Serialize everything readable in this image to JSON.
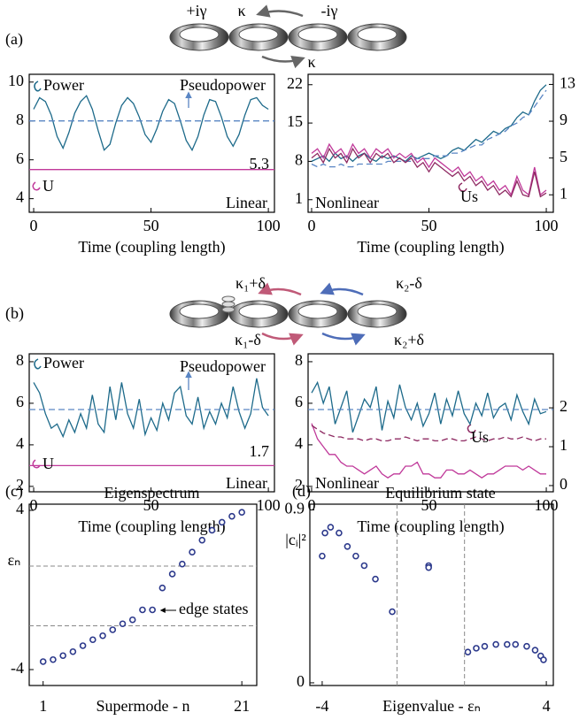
{
  "panel_labels": [
    "(a)",
    "(b)",
    "(c)",
    "(d)"
  ],
  "diagram_a": {
    "labels": [
      "+iγ",
      "κ",
      "-iγ",
      "κ"
    ]
  },
  "diagram_b": {
    "labels": [
      "κ₁+δ",
      "κ₂-δ",
      "κ₁-δ",
      "κ₂+δ"
    ]
  },
  "chart_data": [
    {
      "type": "line",
      "xlabel": "Time (coupling length)",
      "x": [
        0,
        2.5,
        5,
        7.5,
        10,
        12.5,
        15,
        17.5,
        20,
        22.5,
        25,
        27.5,
        30,
        32.5,
        35,
        37.5,
        40,
        42.5,
        45,
        47.5,
        50,
        52.5,
        55,
        57.5,
        60,
        62.5,
        65,
        67.5,
        70,
        72.5,
        75,
        77.5,
        80,
        82.5,
        85,
        87.5,
        90,
        92.5,
        95,
        97.5,
        100
      ],
      "xlim": [
        -1.9,
        102.6
      ],
      "xticks": [
        0,
        50,
        100
      ],
      "ylim": [
        3.3,
        10.4
      ],
      "yticks": [
        4,
        6,
        8,
        10
      ],
      "ytick_color": "#2a7ab0",
      "series": [
        {
          "name": "Power",
          "color": "#1d6a8a",
          "values": [
            8.6,
            9.2,
            9.0,
            8.3,
            7.2,
            6.6,
            7.4,
            8.4,
            9.0,
            9.3,
            8.6,
            7.5,
            6.5,
            6.8,
            7.9,
            8.8,
            9.2,
            8.9,
            8.2,
            7.3,
            6.9,
            7.6,
            8.5,
            9.1,
            8.9,
            8.0,
            7.0,
            6.5,
            7.2,
            8.3,
            9.1,
            9.0,
            8.2,
            7.2,
            6.7,
            7.3,
            8.3,
            9.1,
            9.2,
            8.8,
            8.6
          ]
        },
        {
          "name": "Pseudopower",
          "color": "#5a86c4",
          "dash": true,
          "x": [
            -1.9,
            102.6
          ],
          "values": [
            8,
            8
          ]
        },
        {
          "name": "U",
          "color": "#c0399a",
          "x": [
            -1.9,
            102.6
          ],
          "values": [
            5.5,
            5.5
          ]
        }
      ],
      "annotations": [
        "5.3",
        "Linear"
      ]
    },
    {
      "type": "line",
      "xlabel": "Time (coupling length)",
      "x": [
        0,
        2.5,
        5,
        7.5,
        10,
        12.5,
        15,
        17.5,
        20,
        22.5,
        25,
        27.5,
        30,
        32.5,
        35,
        37.5,
        40,
        42.5,
        45,
        47.5,
        50,
        52.5,
        55,
        57.5,
        60,
        62.5,
        65,
        67.5,
        70,
        72.5,
        75,
        77.5,
        80,
        82.5,
        85,
        87.5,
        90,
        92.5,
        95,
        97.5,
        100
      ],
      "xlim": [
        -1.5,
        103
      ],
      "xticks": [
        0,
        50,
        100
      ],
      "ylim": [
        -1.3,
        23.9
      ],
      "yticks": [
        1,
        8,
        15,
        22
      ],
      "ytick_color": "#2a7ab0",
      "y2lim": [
        -0.9,
        14.1
      ],
      "y2ticks": [
        1,
        5,
        9,
        13
      ],
      "y2tick_color": "#c0399a",
      "series": [
        {
          "color": "#1d6a8a",
          "values": [
            8,
            8.5,
            9,
            8,
            9.5,
            8.5,
            9,
            8,
            9,
            9.5,
            8.5,
            8,
            9,
            8.5,
            9,
            8.5,
            8,
            9,
            8.5,
            9,
            9.5,
            9,
            8.5,
            9,
            10,
            10.5,
            10,
            11,
            12,
            11.5,
            12.5,
            13.5,
            13,
            14,
            14.5,
            16,
            17,
            16.5,
            19,
            21,
            22
          ]
        },
        {
          "color": "#5a86c4",
          "dash": true,
          "values": [
            7.5,
            7,
            7.5,
            7,
            7,
            7.5,
            7,
            7,
            7.5,
            7.5,
            7.5,
            7.5,
            7.5,
            8,
            8,
            8,
            8,
            8,
            8.5,
            8.5,
            8.5,
            9,
            9,
            9,
            9.5,
            9.5,
            10,
            10.5,
            11,
            11,
            12,
            12.5,
            13,
            13.5,
            14.5,
            15,
            16,
            16.5,
            18,
            19.5,
            21
          ]
        },
        {
          "color": "#c0399a",
          "axis": "y2",
          "values": [
            5.5,
            6,
            5,
            6.5,
            5.5,
            6,
            5,
            6.5,
            5.5,
            6,
            5,
            6,
            5.5,
            6,
            5,
            5.5,
            5,
            5.5,
            4.5,
            5,
            4,
            5,
            4.5,
            4,
            3.5,
            4,
            3,
            3.5,
            2.5,
            3,
            2,
            2.5,
            1.5,
            2,
            1,
            3,
            1.5,
            1,
            4,
            1,
            1.5
          ]
        },
        {
          "name": "Us",
          "color": "#8e2a62",
          "axis": "y2",
          "values": [
            5,
            5.5,
            4.5,
            6,
            5,
            5.5,
            4.5,
            6,
            5,
            5.5,
            4.5,
            5.5,
            5,
            5.5,
            4.5,
            5,
            4.5,
            5,
            4,
            4.5,
            3.5,
            4.5,
            4,
            3.5,
            3,
            3.5,
            2.5,
            3,
            2,
            2.5,
            1.5,
            2,
            1,
            1.5,
            0.8,
            2.5,
            1,
            0.8,
            3.5,
            0.8,
            1.2
          ]
        }
      ],
      "annotations": [
        "Nonlinear"
      ]
    },
    {
      "type": "line",
      "xlabel": "Time (coupling length)",
      "x": [
        0,
        2.5,
        5,
        7.5,
        10,
        12.5,
        15,
        17.5,
        20,
        22.5,
        25,
        27.5,
        30,
        32.5,
        35,
        37.5,
        40,
        42.5,
        45,
        47.5,
        50,
        52.5,
        55,
        57.5,
        60,
        62.5,
        65,
        67.5,
        70,
        72.5,
        75,
        77.5,
        80,
        82.5,
        85,
        87.5,
        90,
        92.5,
        95,
        97.5,
        100
      ],
      "xlim": [
        -1.9,
        102.6
      ],
      "xticks": [
        0,
        50,
        100
      ],
      "ylim": [
        1.74,
        8.38
      ],
      "yticks": [
        2,
        4,
        6,
        8
      ],
      "ytick_color": "#2a7ab0",
      "series": [
        {
          "name": "Power",
          "color": "#1d6a8a",
          "values": [
            7.0,
            6.5,
            5.5,
            4.8,
            5.0,
            4.4,
            5.2,
            4.6,
            5.5,
            4.8,
            6.4,
            5.0,
            4.6,
            6.8,
            5.2,
            7.0,
            5.5,
            4.8,
            6.2,
            4.5,
            5.3,
            4.7,
            6.0,
            5.2,
            6.5,
            6.8,
            5.4,
            5.0,
            6.3,
            4.8,
            5.6,
            5.0,
            6.0,
            5.3,
            6.8,
            5.6,
            4.8,
            5.5,
            7.2,
            5.8,
            5.4
          ]
        },
        {
          "name": "Pseudopower",
          "color": "#5a86c4",
          "dash": true,
          "x": [
            -1.9,
            102.6
          ],
          "values": [
            5.7,
            5.7
          ]
        },
        {
          "name": "U",
          "color": "#c0399a",
          "x": [
            -1.9,
            102.6
          ],
          "values": [
            3.0,
            3.0
          ]
        }
      ],
      "annotations": [
        "1.7",
        "Linear"
      ]
    },
    {
      "type": "line",
      "xlabel": "Time (coupling length)",
      "x": [
        0,
        2.5,
        5,
        7.5,
        10,
        12.5,
        15,
        17.5,
        20,
        22.5,
        25,
        27.5,
        30,
        32.5,
        35,
        37.5,
        40,
        42.5,
        45,
        47.5,
        50,
        52.5,
        55,
        57.5,
        60,
        62.5,
        65,
        67.5,
        70,
        72.5,
        75,
        77.5,
        80,
        82.5,
        85,
        87.5,
        90,
        92.5,
        95,
        97.5,
        100
      ],
      "xlim": [
        -1.5,
        103
      ],
      "xticks": [
        0,
        50,
        100
      ],
      "ylim": [
        1.74,
        8.38
      ],
      "yticks": [
        2,
        4,
        6,
        8
      ],
      "ytick_color": "#2a7ab0",
      "y2lim": [
        -0.16,
        3.39
      ],
      "y2ticks": [
        0,
        1,
        2
      ],
      "y2tick_color": "#c0399a",
      "series": [
        {
          "color": "#1d6a8a",
          "values": [
            6.5,
            7.0,
            6.0,
            6.8,
            5.0,
            5.8,
            6.6,
            4.6,
            5.4,
            6.2,
            5.8,
            6.8,
            4.7,
            6.1,
            5.3,
            6.9,
            5.8,
            5.2,
            6.0,
            4.9,
            5.5,
            6.5,
            5.0,
            6.2,
            5.4,
            6.6,
            5.5,
            5.0,
            6.0,
            5.4,
            6.5,
            5.3,
            5.8,
            6.0,
            5.2,
            6.4,
            5.6,
            5.0,
            6.2,
            5.5,
            5.6
          ]
        },
        {
          "color": "#5a86c4",
          "dash": true,
          "x": [
            -1.5,
            103
          ],
          "values": [
            5.7,
            5.7
          ]
        },
        {
          "color": "#c0399a",
          "axis": "y2",
          "values": [
            1.6,
            1.2,
            1.0,
            0.8,
            0.8,
            0.6,
            0.5,
            0.5,
            0.4,
            0.3,
            0.4,
            0.5,
            0.3,
            0.2,
            0.3,
            0.3,
            0.5,
            0.5,
            0.6,
            0.3,
            0.3,
            0.2,
            0.2,
            0.4,
            0.4,
            0.3,
            0.3,
            0.4,
            0.3,
            0.2,
            0.3,
            0.3,
            0.4,
            0.5,
            0.5,
            0.5,
            0.4,
            0.5,
            0.4,
            0.3,
            0.3
          ]
        },
        {
          "name": "Us",
          "color": "#8e2a62",
          "axis": "y2",
          "dash": true,
          "values": [
            1.55,
            1.45,
            1.35,
            1.3,
            1.25,
            1.25,
            1.2,
            1.2,
            1.2,
            1.15,
            1.2,
            1.2,
            1.15,
            1.15,
            1.2,
            1.2,
            1.25,
            1.2,
            1.15,
            1.2,
            1.2,
            1.15,
            1.15,
            1.2,
            1.2,
            1.15,
            1.15,
            1.2,
            1.25,
            1.2,
            1.15,
            1.2,
            1.2,
            1.25,
            1.2,
            1.2,
            1.25,
            1.2,
            1.15,
            1.2,
            1.2
          ]
        }
      ],
      "annotations": [
        "Nonlinear"
      ]
    },
    {
      "type": "scatter",
      "title": "Eigenspectrum",
      "xlabel": "Supermode - n",
      "ylabel": "εₙ",
      "x": [
        1,
        2,
        3,
        4,
        5,
        6,
        7,
        8,
        9,
        10,
        11,
        12,
        13,
        14,
        15,
        16,
        17,
        18,
        19,
        20,
        21
      ],
      "xlim": [
        -0.4,
        22.5
      ],
      "xticks": [
        1,
        21
      ],
      "ylim": [
        -4.8,
        4.31
      ],
      "yticks": [
        -4,
        4
      ],
      "color": "#2d3a8c",
      "values": [
        -3.6,
        -3.5,
        -3.3,
        -3.1,
        -2.8,
        -2.5,
        -2.3,
        -2.0,
        -1.7,
        -1.5,
        -1.0,
        -1.0,
        0.1,
        0.8,
        1.3,
        1.9,
        2.5,
        3.0,
        3.4,
        3.7,
        3.9
      ],
      "hlines": [
        1.2,
        -1.8
      ],
      "annotations": [
        "edge states"
      ]
    },
    {
      "type": "scatter",
      "title": "Equilibrium state",
      "xlabel": "Eigenvalue - εₙ",
      "ylabel": "|cᵢ|²",
      "x": [
        -4,
        -3.9,
        -3.7,
        -3.4,
        -3.1,
        -2.8,
        -2.5,
        -2.1,
        -1.5,
        -0.2,
        -0.2,
        1.2,
        1.5,
        1.8,
        2.2,
        2.6,
        2.9,
        3.3,
        3.6,
        3.8,
        3.9
      ],
      "xlim": [
        -4.44,
        4.25
      ],
      "xticks": [
        -4,
        4
      ],
      "ylim": [
        -0.014,
        0.93
      ],
      "yticks": [
        0,
        0.9
      ],
      "color": "#2d3a8c",
      "values": [
        0.66,
        0.78,
        0.81,
        0.78,
        0.71,
        0.66,
        0.61,
        0.54,
        0.37,
        0.61,
        0.6,
        0.16,
        0.18,
        0.19,
        0.2,
        0.2,
        0.2,
        0.19,
        0.17,
        0.14,
        0.12
      ],
      "vlines": [
        -1.33,
        1.08
      ]
    }
  ]
}
